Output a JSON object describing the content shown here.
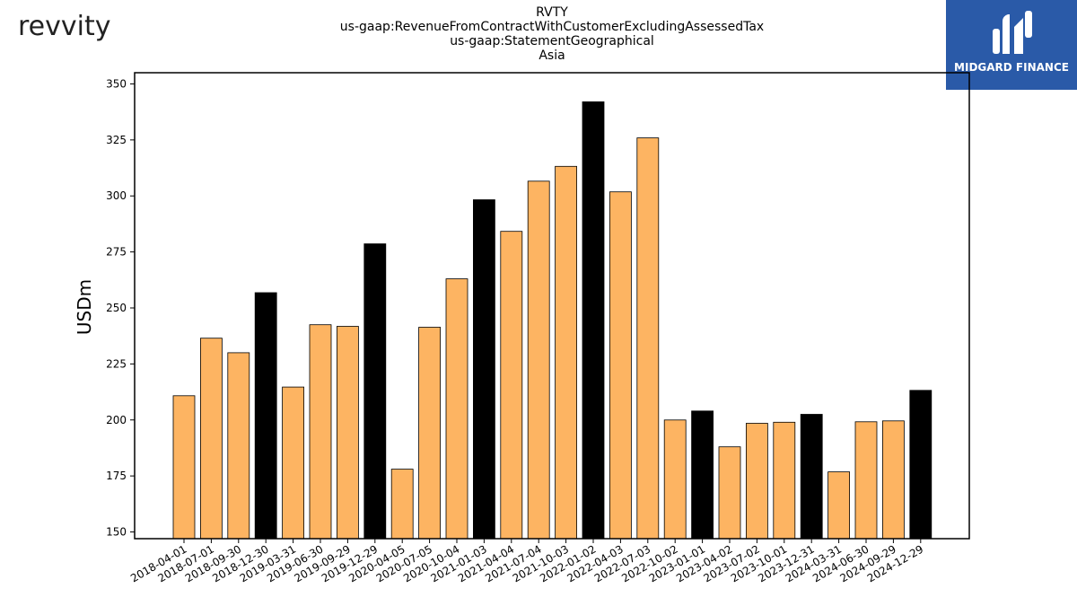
{
  "header": {
    "logo_text": "revvity",
    "title_lines": [
      "RVTY",
      "us-gaap:RevenueFromContractWithCustomerExcludingAssessedTax",
      "us-gaap:StatementGeographical",
      "Asia"
    ],
    "brand": "MIDGARD FINANCE"
  },
  "colors": {
    "regular_bar": "#fdb462",
    "q4_bar": "#000000",
    "bar_edge": "#000000",
    "brand_bg": "#2a5aa8"
  },
  "chart_data": {
    "type": "bar",
    "title": "RVTY us-gaap:RevenueFromContractWithCustomerExcludingAssessedTax us-gaap:StatementGeographical Asia",
    "xlabel": "",
    "ylabel": "USDm",
    "ylim": [
      147,
      355
    ],
    "yticks": [
      150,
      175,
      200,
      225,
      250,
      275,
      300,
      325,
      350
    ],
    "grid": false,
    "categories": [
      "2018-04-01",
      "2018-07-01",
      "2018-09-30",
      "2018-12-30",
      "2019-03-31",
      "2019-06-30",
      "2019-09-29",
      "2019-12-29",
      "2020-04-05",
      "2020-07-05",
      "2020-10-04",
      "2021-01-03",
      "2021-04-04",
      "2021-07-04",
      "2021-10-03",
      "2022-01-02",
      "2022-04-03",
      "2022-07-03",
      "2022-10-02",
      "2023-01-01",
      "2023-04-02",
      "2023-07-02",
      "2023-10-01",
      "2023-12-31",
      "2024-03-31",
      "2024-06-30",
      "2024-09-29",
      "2024-12-29"
    ],
    "values": [
      210.8,
      236.5,
      230.0,
      256.8,
      214.7,
      242.5,
      241.8,
      278.6,
      178.0,
      241.4,
      263.0,
      298.3,
      284.2,
      306.6,
      313.2,
      342.0,
      301.8,
      325.9,
      200.0,
      204.0,
      188.0,
      198.5,
      199.0,
      202.5,
      176.8,
      199.2,
      199.6,
      213.2
    ],
    "highlight": [
      false,
      false,
      false,
      true,
      false,
      false,
      false,
      true,
      false,
      false,
      false,
      true,
      false,
      false,
      false,
      true,
      false,
      false,
      false,
      true,
      false,
      false,
      false,
      true,
      false,
      false,
      false,
      true
    ]
  }
}
